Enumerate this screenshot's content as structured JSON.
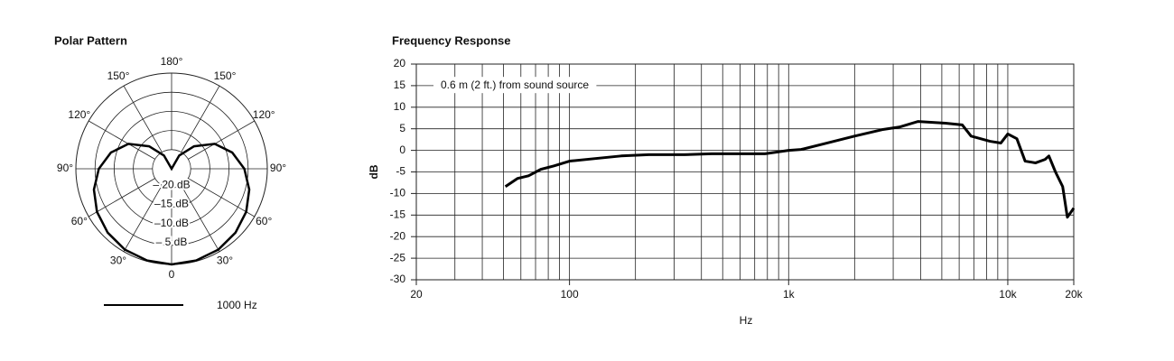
{
  "chart_data": [
    {
      "type": "polar",
      "title": "Polar Pattern",
      "x": [
        0,
        15,
        30,
        45,
        60,
        75,
        90,
        105,
        120,
        135,
        150,
        165,
        180,
        195,
        210,
        225,
        240,
        255,
        270,
        285,
        300,
        315,
        330,
        345
      ],
      "series": [
        {
          "name": "1000 Hz",
          "color": "#000000",
          "values": [
            0,
            -0.2,
            -0.6,
            -1.4,
            -2.5,
            -4,
            -6,
            -8.6,
            -12,
            -16.7,
            -21,
            -25,
            -25,
            -25,
            -21,
            -16.7,
            -12,
            -8.6,
            -6,
            -4,
            -2.5,
            -1.4,
            -0.6,
            -0.2
          ]
        }
      ],
      "xticks": [
        0,
        {
          "value": 30,
          "label": "30°"
        },
        {
          "value": 60,
          "label": "60°"
        },
        {
          "value": 90,
          "label": "90°"
        },
        {
          "value": 120,
          "label": "120°"
        },
        {
          "value": 150,
          "label": "150°"
        },
        {
          "value": 180,
          "label": "180°"
        },
        {
          "value": 210,
          "label": "150°"
        },
        {
          "value": 240,
          "label": "120°"
        },
        {
          "value": 270,
          "label": "90°"
        },
        {
          "value": 300,
          "label": "60°"
        },
        {
          "value": 330,
          "label": "30°"
        }
      ],
      "rlim": [
        -25,
        0
      ],
      "rticks": [
        {
          "value": -20,
          "label": "– 20 dB"
        },
        {
          "value": -15,
          "label": "–15 dB"
        },
        {
          "value": -10,
          "label": "–10 dB"
        },
        {
          "value": -5,
          "label": "– 5 dB"
        }
      ]
    },
    {
      "type": "line",
      "title": "Frequency Response",
      "xlabel": "Hz",
      "ylabel": "dB",
      "annotation": "0.6 m (2 ft.) from sound source",
      "log_x": true,
      "grid": true,
      "xlim": [
        20,
        20000
      ],
      "xticks": [
        20,
        100,
        {
          "value": 1000,
          "label": "1k"
        },
        {
          "value": 10000,
          "label": "10k"
        },
        {
          "value": 20000,
          "label": "20k"
        }
      ],
      "ylim": [
        -30,
        20
      ],
      "yticks": [
        -30,
        -25,
        -20,
        -15,
        -10,
        -5,
        0,
        5,
        10,
        15,
        20
      ],
      "series": [
        {
          "color": "#000000",
          "x": [
            51,
            58,
            65,
            74,
            85,
            100,
            131,
            172,
            230,
            335,
            445,
            780,
            1000,
            1140,
            1500,
            2000,
            2670,
            3200,
            3900,
            5200,
            6200,
            6800,
            8300,
            9300,
            10000,
            11000,
            12000,
            13400,
            14800,
            15400,
            16500,
            17800,
            18700,
            20000
          ],
          "values": [
            -8.4,
            -6.5,
            -5.9,
            -4.4,
            -3.6,
            -2.5,
            -1.9,
            -1.3,
            -1.0,
            -1.0,
            -0.8,
            -0.8,
            0,
            0.2,
            1.7,
            3.3,
            4.8,
            5.4,
            6.7,
            6.3,
            5.9,
            3.3,
            2.1,
            1.7,
            3.8,
            2.7,
            -2.5,
            -2.9,
            -2.1,
            -1.3,
            -5.0,
            -8.4,
            -15.5,
            -13.4
          ]
        }
      ]
    }
  ]
}
